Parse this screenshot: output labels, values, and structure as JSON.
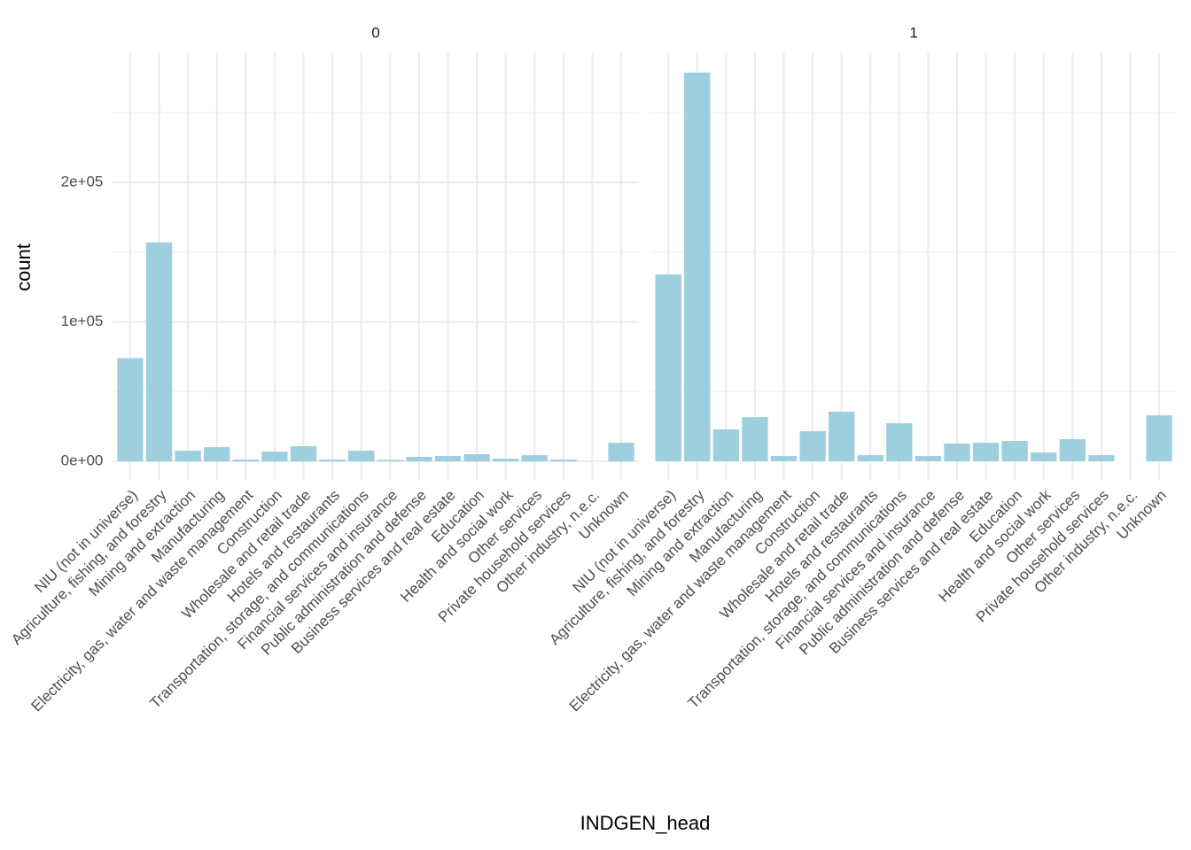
{
  "xlabel": "INDGEN_head",
  "ylabel": "count",
  "chart_data": [
    {
      "type": "bar",
      "title": "0",
      "color": "#9ecfdf",
      "grid": true,
      "categories": [
        "NIU (not in universe)",
        "Agriculture, fishing, and forestry",
        "Mining and extraction",
        "Manufacturing",
        "Electricity, gas, water and waste management",
        "Construction",
        "Wholesale and retail trade",
        "Hotels and restaurants",
        "Transportation, storage, and communications",
        "Financial services and insurance",
        "Public administration and defense",
        "Business services and real estate",
        "Education",
        "Health and social work",
        "Other services",
        "Private household services",
        "Other industry, n.e.c.",
        "Unknown"
      ],
      "values": [
        74000,
        157000,
        7600,
        10200,
        1300,
        7000,
        10800,
        1300,
        7600,
        1000,
        3200,
        3800,
        5100,
        1900,
        4400,
        1300,
        0,
        13300
      ],
      "ylim": [
        -13937,
        292670
      ],
      "yticks": [
        {
          "value": 0,
          "label": "0e+00"
        },
        {
          "value": 100000,
          "label": "1e+05"
        },
        {
          "value": 200000,
          "label": "2e+05"
        }
      ],
      "yminor": [
        50000,
        150000,
        250000
      ]
    },
    {
      "type": "bar",
      "title": "1",
      "color": "#9ecfdf",
      "grid": true,
      "categories": [
        "NIU (not in universe)",
        "Agriculture, fishing, and forestry",
        "Mining and extraction",
        "Manufacturing",
        "Electricity, gas, water and waste management",
        "Construction",
        "Wholesale and retail trade",
        "Hotels and restaurants",
        "Transportation, storage, and communications",
        "Financial services and insurance",
        "Public administration and defense",
        "Business services and real estate",
        "Education",
        "Health and social work",
        "Other services",
        "Private household services",
        "Other industry, n.e.c.",
        "Unknown"
      ],
      "values": [
        134000,
        278700,
        22900,
        31700,
        3800,
        21600,
        35600,
        4400,
        27300,
        3800,
        12700,
        13300,
        14600,
        6300,
        15900,
        4400,
        0,
        33000
      ],
      "ylim": [
        -13937,
        292670
      ],
      "yminor": [
        50000,
        150000,
        250000
      ]
    }
  ]
}
